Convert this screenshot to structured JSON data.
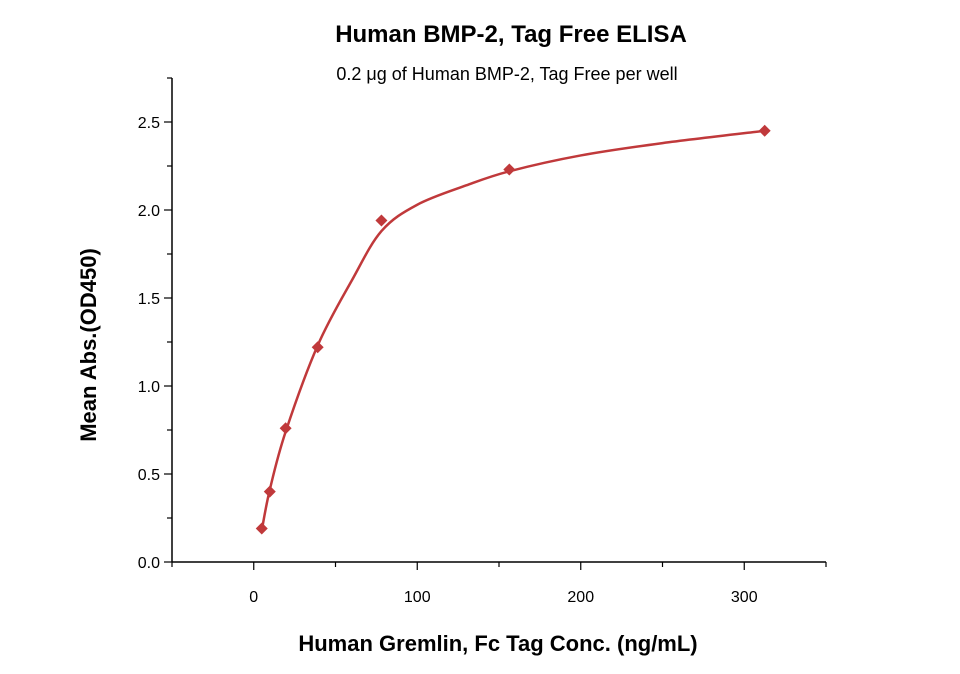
{
  "chart_data": {
    "type": "scatter",
    "title": "Human BMP-2, Tag Free ELISA",
    "subtitle": "0.2 μg of Human BMP-2, Tag Free per well",
    "xlabel": "Human Gremlin, Fc Tag Conc. (ng/mL)",
    "ylabel": "Mean Abs.(OD450)",
    "xlim": [
      -50,
      350
    ],
    "ylim": [
      0,
      2.75
    ],
    "xticks": [
      0,
      100,
      200,
      300
    ],
    "yticks": [
      0.0,
      0.5,
      1.0,
      1.5,
      2.0,
      2.5
    ],
    "xtick_labels": [
      "0",
      "100",
      "200",
      "300"
    ],
    "ytick_labels": [
      "0.0",
      "0.5",
      "1.0",
      "1.5",
      "2.0",
      "2.5"
    ],
    "grid": false,
    "color": "#c0393b",
    "series": [
      {
        "points": [
          {
            "x": 4.9,
            "y": 0.19
          },
          {
            "x": 9.8,
            "y": 0.4
          },
          {
            "x": 19.5,
            "y": 0.76
          },
          {
            "x": 39.1,
            "y": 1.22
          },
          {
            "x": 78.1,
            "y": 1.94
          },
          {
            "x": 156.3,
            "y": 2.23
          },
          {
            "x": 312.5,
            "y": 2.45
          }
        ],
        "fit": [
          {
            "x": 4.9,
            "y": 0.18
          },
          {
            "x": 9.8,
            "y": 0.41
          },
          {
            "x": 19.5,
            "y": 0.74
          },
          {
            "x": 39.1,
            "y": 1.23
          },
          {
            "x": 60.0,
            "y": 1.6
          },
          {
            "x": 78.1,
            "y": 1.88
          },
          {
            "x": 100.0,
            "y": 2.03
          },
          {
            "x": 130.0,
            "y": 2.14
          },
          {
            "x": 156.3,
            "y": 2.22
          },
          {
            "x": 200.0,
            "y": 2.31
          },
          {
            "x": 250.0,
            "y": 2.38
          },
          {
            "x": 312.5,
            "y": 2.45
          }
        ]
      }
    ]
  }
}
